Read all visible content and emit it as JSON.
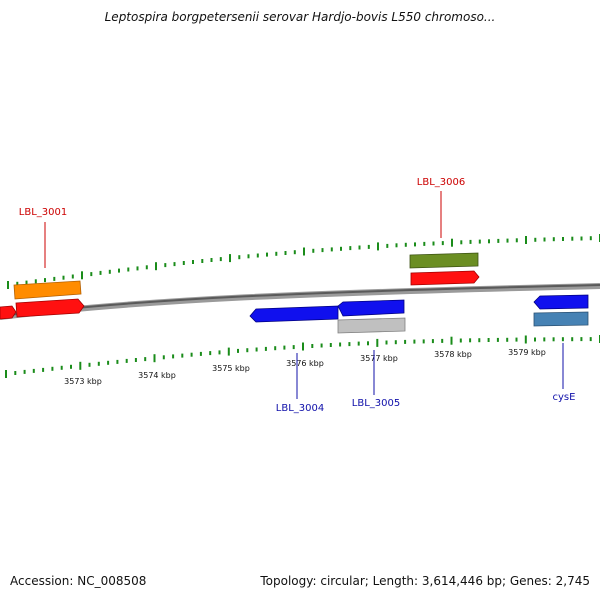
{
  "title": "Leptospira borgpetersenii serovar Hardjo-bovis L550 chromoso...",
  "footer": {
    "accession": "Accession: NC_008508",
    "summary": "Topology: circular; Length: 3,614,446 bp; Genes: 2,745"
  },
  "colors": {
    "backbone": "#808080",
    "tick": "#1a8c1a",
    "forward_label": "#cc0000",
    "reverse_label": "#1010aa",
    "red": "#ff1010",
    "orange": "#ff8c00",
    "olive": "#6b8e23",
    "blue": "#1010ee",
    "gray": "#c0c0c0",
    "steel": "#4682b4"
  },
  "axis_labels": [
    "3573 kbp",
    "3574 kbp",
    "3575 kbp",
    "3576 kbp",
    "3577 kbp",
    "3578 kbp",
    "3579 kbp"
  ],
  "gene_labels": [
    {
      "text": "LBL_3001",
      "strand": "forward"
    },
    {
      "text": "LBL_3006",
      "strand": "forward"
    },
    {
      "text": "LBL_3004",
      "strand": "reverse"
    },
    {
      "text": "LBL_3005",
      "strand": "reverse"
    },
    {
      "text": "cysE",
      "strand": "reverse"
    }
  ]
}
